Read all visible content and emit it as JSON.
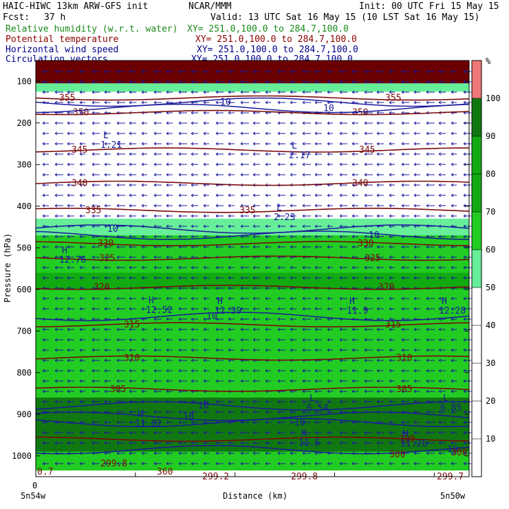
{
  "header": {
    "model_line": "HAIC-HIWC 13km ARW-GFS init",
    "org": "NCAR/MMM",
    "init": "Init: 00 UTC Fri 15 May 15",
    "fcst_label": "Fcst:",
    "fcst_value": "37 h",
    "valid": "Valid: 13 UTC Sat 16 May 15 (10 LST Sat 16 May 15)",
    "fields": [
      {
        "name": "Relative humidity (w.r.t. water)",
        "xy": "XY= 251.0,100.0 to 284.7,100.0",
        "color": "#1a8a1a"
      },
      {
        "name": "Potential temperature",
        "xy": "XY= 251.0,100.0 to 284.7,100.0",
        "color": "#8b0000"
      },
      {
        "name": "Horizontal wind speed",
        "xy": "XY= 251.0,100.0 to 284.7,100.0",
        "color": "#00008b"
      },
      {
        "name": "Circulation vectors",
        "xy": "XY= 251.0,100.0 to 284.7,100.0",
        "color": "#00008b"
      }
    ]
  },
  "chart_data": {
    "type": "heatmap",
    "ylabel": "Pressure (hPa)",
    "xlabel": "Distance (km)",
    "x_left_label": "5n54w",
    "x_right_label": "5n50w",
    "x_zero_label": "0",
    "yticks": [
      100,
      200,
      300,
      400,
      500,
      600,
      700,
      800,
      900,
      1000
    ],
    "ylim": [
      1050,
      50
    ],
    "colorbar": {
      "unit": "%",
      "levels": [
        10,
        20,
        30,
        40,
        50,
        60,
        70,
        80,
        90,
        100
      ],
      "colors": {
        "white": "#ffffff",
        "light": "#66ee99",
        "mid": "#22cc22",
        "green": "#11aa11",
        "dark": "#117711",
        "pink": "#ee7777"
      },
      "bands": [
        {
          "from": 0,
          "to": 50,
          "color": "white"
        },
        {
          "from": 50,
          "to": 60,
          "color": "light"
        },
        {
          "from": 60,
          "to": 70,
          "color": "mid"
        },
        {
          "from": 70,
          "to": 80,
          "color": "green"
        },
        {
          "from": 80,
          "to": 90,
          "color": "green"
        },
        {
          "from": 90,
          "to": 100,
          "color": "dark"
        },
        {
          "from": 100,
          "to": 110,
          "color": "pink"
        }
      ]
    },
    "rh_layers": [
      {
        "p_top": 50,
        "p_bottom": 105,
        "color": "#6b0000"
      },
      {
        "p_top": 105,
        "p_bottom": 125,
        "color": "#66ee99"
      },
      {
        "p_top": 430,
        "p_bottom": 470,
        "color": "#66ee99"
      },
      {
        "p_top": 470,
        "p_bottom": 1035,
        "color": "#22cc22"
      },
      {
        "p_top": 560,
        "p_bottom": 600,
        "color": "#11aa11"
      },
      {
        "p_top": 860,
        "p_bottom": 990,
        "color": "#117711"
      },
      {
        "p_top": 990,
        "p_bottom": 1035,
        "color": "#22cc22"
      }
    ],
    "theta_lines": [
      {
        "p": 140,
        "label": "355"
      },
      {
        "p": 175,
        "label": "350"
      },
      {
        "p": 265,
        "label": "345"
      },
      {
        "p": 345,
        "label": "340"
      },
      {
        "p": 410,
        "label": "335"
      },
      {
        "p": 490,
        "label": "330"
      },
      {
        "p": 525,
        "label": "325"
      },
      {
        "p": 595,
        "label": "320"
      },
      {
        "p": 685,
        "label": "315"
      },
      {
        "p": 765,
        "label": "310"
      },
      {
        "p": 840,
        "label": "305"
      },
      {
        "p": 960,
        "label": "300"
      }
    ],
    "wind_labels": [
      "10",
      "10",
      "10",
      "10",
      "10",
      "10",
      "10",
      "10",
      "10"
    ],
    "extrema_labels": [
      {
        "mark": "L",
        "value": "1.21"
      },
      {
        "mark": "L",
        "value": "2.17"
      },
      {
        "mark": "L",
        "value": "2.23"
      },
      {
        "mark": "H",
        "value": "12.76"
      },
      {
        "mark": "H",
        "value": "12.52"
      },
      {
        "mark": "H",
        "value": "12.39"
      },
      {
        "mark": "H",
        "value": "11.9"
      },
      {
        "mark": "H",
        "value": "12.28"
      },
      {
        "mark": "L",
        "value": "6.54"
      },
      {
        "mark": "L",
        "value": "6.85"
      },
      {
        "mark": "H",
        "value": "11.62"
      },
      {
        "mark": "H",
        "value": "11.5"
      },
      {
        "mark": "H",
        "value": "11.26"
      },
      {
        "mark": "",
        "value": "299.8"
      },
      {
        "mark": "",
        "value": "299.2"
      },
      {
        "mark": "",
        "value": "299.8"
      },
      {
        "mark": "",
        "value": "299.7"
      },
      {
        "mark": "",
        "value": "360"
      },
      {
        "mark": "",
        "value": "300"
      },
      {
        "mark": "",
        "value": "300"
      },
      {
        "mark": "",
        "value": "0.7"
      }
    ]
  }
}
